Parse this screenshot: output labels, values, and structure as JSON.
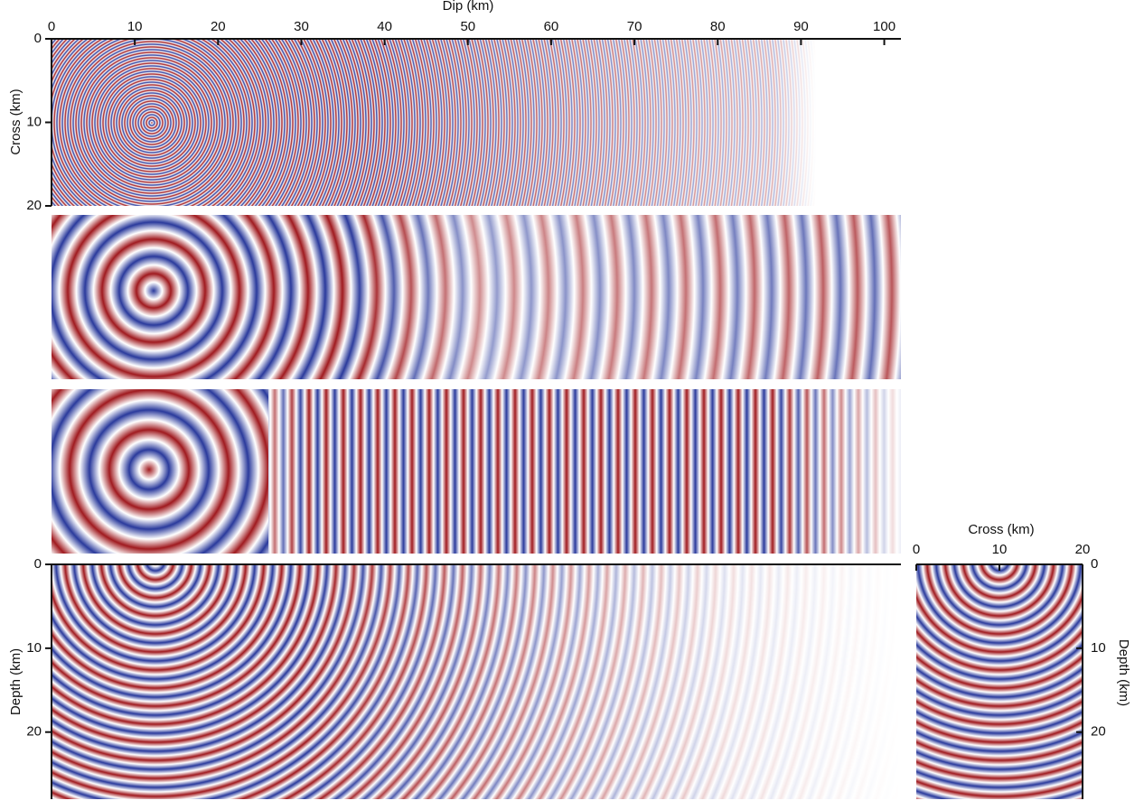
{
  "top_axis": {
    "label": "Dip (km)",
    "lim": [
      0,
      102
    ],
    "ticks": [
      0,
      10,
      20,
      30,
      40,
      50,
      60,
      70,
      80,
      90,
      100
    ]
  },
  "panels": [
    {
      "y_label": "Cross (km)",
      "ylim": [
        0,
        20
      ],
      "yticks": [
        0,
        10,
        20
      ]
    },
    {
      "y_label": "Depth (km)",
      "ylim": [
        0,
        28
      ],
      "yticks": [
        0,
        10,
        20
      ]
    }
  ],
  "side_panel": {
    "x_label": "Cross (km)",
    "xlim": [
      0,
      20
    ],
    "xticks": [
      0,
      10,
      20
    ],
    "y_label": "Depth (km)",
    "ylim": [
      0,
      28
    ],
    "yticks": [
      0,
      10,
      20
    ]
  }
}
